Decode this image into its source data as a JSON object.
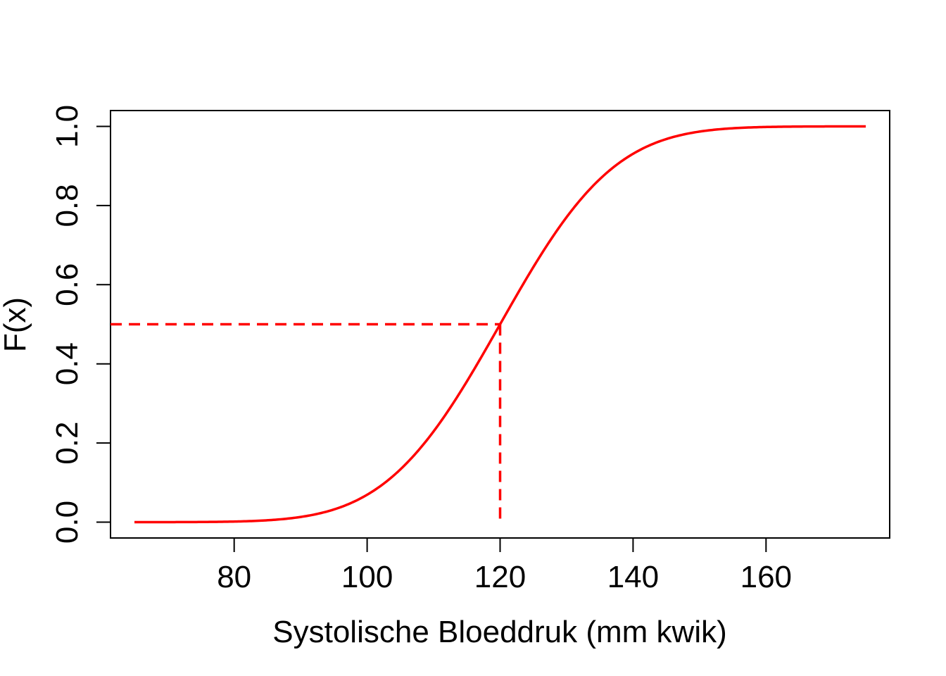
{
  "chart_data": {
    "type": "line",
    "title": "",
    "xlabel": "Systolische Bloeddruk (mm kwik)",
    "ylabel": "F(x)",
    "xlim": [
      61.4,
      178.6
    ],
    "ylim": [
      -0.04,
      1.04
    ],
    "x_ticks": [
      80,
      100,
      120,
      140,
      160
    ],
    "x_tick_labels": [
      "80",
      "100",
      "120",
      "140",
      "160"
    ],
    "y_ticks": [
      0,
      0.2,
      0.4,
      0.6,
      0.8,
      1.0
    ],
    "y_tick_labels": [
      "0.0",
      "0.2",
      "0.4",
      "0.6",
      "0.8",
      "1.0"
    ],
    "grid": false,
    "series": [
      {
        "distribution": "normal CDF",
        "mean": 120,
        "sd": 13.5,
        "x_range": [
          65,
          175
        ],
        "color": "#FF0000",
        "line_style": "solid"
      }
    ],
    "reference_lines": [
      {
        "from": [
          61.4,
          0.5
        ],
        "to": [
          120,
          0.5
        ],
        "color": "#FF0000",
        "line_style": "dashed"
      },
      {
        "from": [
          120,
          0.5
        ],
        "to": [
          120,
          0
        ],
        "color": "#FF0000",
        "line_style": "dashed"
      }
    ]
  }
}
